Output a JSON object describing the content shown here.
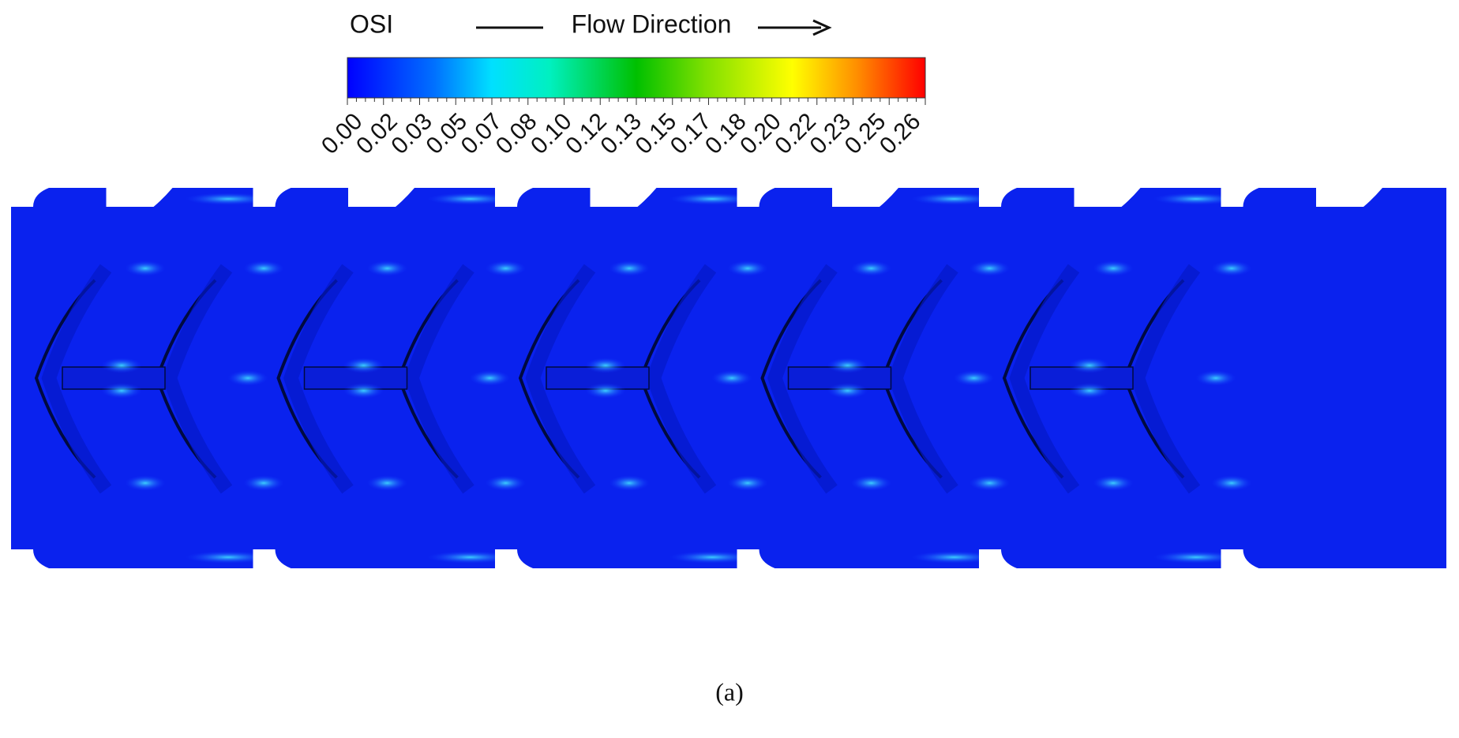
{
  "figure": {
    "legend_title": "OSI",
    "flow_label": "Flow Direction",
    "colorbar": {
      "ticks": [
        "0.00",
        "0.02",
        "0.03",
        "0.05",
        "0.07",
        "0.08",
        "0.10",
        "0.12",
        "0.13",
        "0.15",
        "0.17",
        "0.18",
        "0.20",
        "0.22",
        "0.23",
        "0.25",
        "0.26"
      ]
    },
    "caption": "(a)"
  }
}
